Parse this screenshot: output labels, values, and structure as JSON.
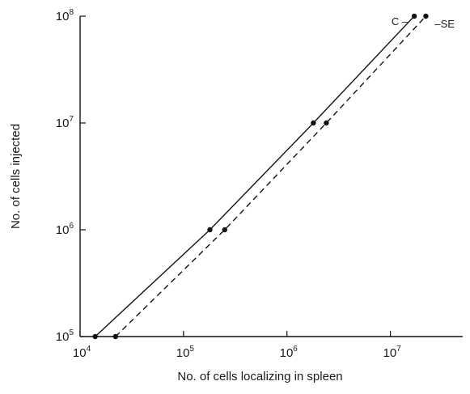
{
  "chart_data": {
    "type": "line",
    "xlabel": "No. of cells localizing in spleen",
    "ylabel": "No. of cells injected",
    "xscale": "log",
    "yscale": "log",
    "xlim": [
      10000,
      50000000
    ],
    "ylim": [
      100000,
      100000000
    ],
    "x_ticks": [
      {
        "base": "10",
        "exp": "4",
        "value": 10000
      },
      {
        "base": "10",
        "exp": "5",
        "value": 100000
      },
      {
        "base": "10",
        "exp": "6",
        "value": 1000000
      },
      {
        "base": "10",
        "exp": "7",
        "value": 10000000
      }
    ],
    "y_ticks": [
      {
        "base": "10",
        "exp": "5",
        "value": 100000
      },
      {
        "base": "10",
        "exp": "6",
        "value": 1000000
      },
      {
        "base": "10",
        "exp": "7",
        "value": 10000000
      },
      {
        "base": "10",
        "exp": "8",
        "value": 100000000
      }
    ],
    "grid": false,
    "series": [
      {
        "name": "C",
        "style": "solid",
        "color": "#111111",
        "points": [
          [
            14000,
            100000
          ],
          [
            180000,
            1000000
          ],
          [
            1800000,
            10000000
          ],
          [
            17000000,
            100000000
          ]
        ]
      },
      {
        "name": "SE",
        "style": "dashed",
        "color": "#111111",
        "points": [
          [
            22000,
            100000
          ],
          [
            250000,
            1000000
          ],
          [
            2400000,
            10000000
          ],
          [
            22000000,
            100000000
          ]
        ]
      }
    ]
  }
}
